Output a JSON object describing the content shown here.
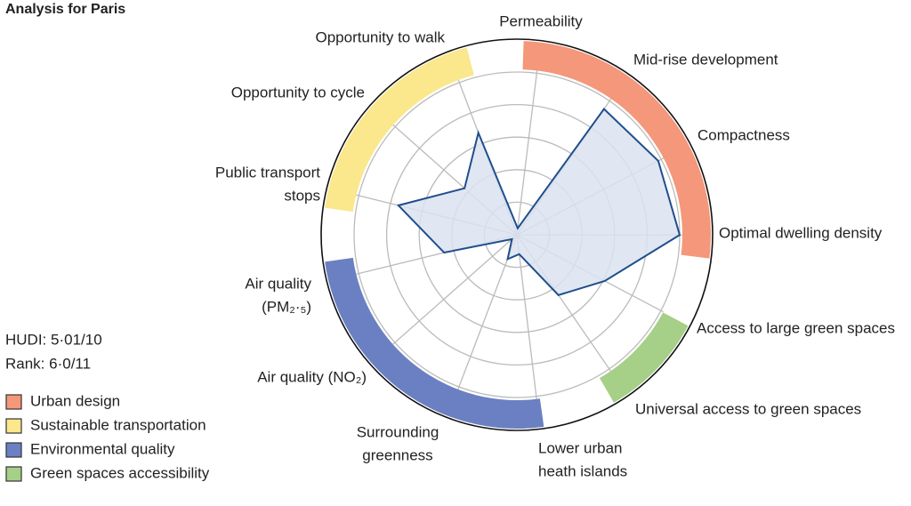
{
  "chart_data": {
    "type": "radar",
    "title": "Analysis for Paris",
    "notes": [
      "HUDI: 5·01/10",
      "Rank: 6·0/11"
    ],
    "categories": [
      [
        "Permeability"
      ],
      [
        "Mid-rise development"
      ],
      [
        "Compactness"
      ],
      [
        "Optimal dwelling density"
      ],
      [
        "Access to large green spaces"
      ],
      [
        "Universal access to green spaces"
      ],
      [
        "Lower urban",
        "heath islands"
      ],
      [
        "Surrounding",
        "greenness"
      ],
      [
        "Air quality (NO₂)"
      ],
      [
        "Air quality",
        "(PM₂·₅)"
      ],
      [
        "Public transport",
        "stops"
      ],
      [
        "Opportunity to cycle"
      ],
      [
        "Opportunity to walk"
      ]
    ],
    "values": [
      0.4,
      9.4,
      9.8,
      10,
      6.1,
      4.5,
      1.2,
      1.6,
      0.4,
      4.6,
      7.5,
      4.3,
      6.7
    ],
    "color": "#1f4e8c",
    "fill": "#dbe3f0",
    "rlim": [
      0,
      10
    ],
    "rticks": [
      2,
      4,
      6,
      8,
      10
    ],
    "grid": true,
    "groups": [
      {
        "name": "Urban design",
        "color": "#f4977a"
      },
      {
        "name": "Sustainable transportation",
        "color": "#fbe78c"
      },
      {
        "name": "Environmental quality",
        "color": "#6b80c2"
      },
      {
        "name": "Green spaces accessibility",
        "color": "#a6cf87"
      }
    ]
  }
}
